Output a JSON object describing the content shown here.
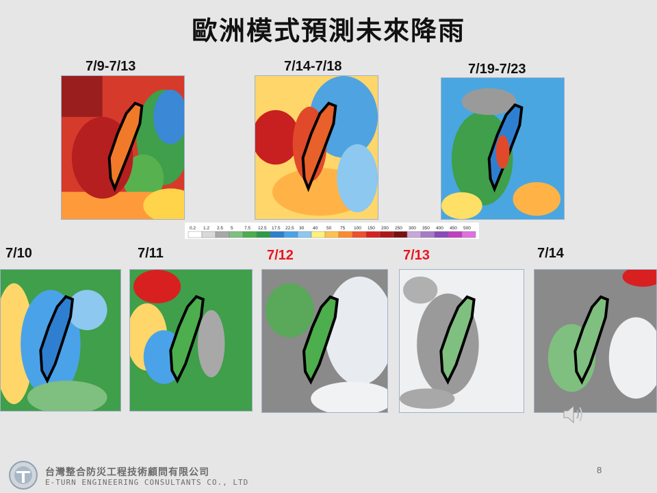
{
  "title": "歐洲模式預測未來降雨",
  "period_maps": [
    {
      "label": "7/9-7/13",
      "label_color": "#111111"
    },
    {
      "label": "7/14-7/18",
      "label_color": "#111111"
    },
    {
      "label": "7/19-7/23",
      "label_color": "#111111"
    }
  ],
  "daily_maps": [
    {
      "label": "7/10",
      "label_color": "#111111"
    },
    {
      "label": "7/11",
      "label_color": "#111111"
    },
    {
      "label": "7/12",
      "label_color": "#e8141e"
    },
    {
      "label": "7/13",
      "label_color": "#e8141e"
    },
    {
      "label": "7/14",
      "label_color": "#111111"
    }
  ],
  "colorbar": {
    "ticks": [
      "0.2",
      "1.2",
      "2.5",
      "5",
      "7.5",
      "12.5",
      "17.5",
      "22.5",
      "30",
      "40",
      "50",
      "75",
      "100",
      "150",
      "200",
      "250",
      "300",
      "350",
      "400",
      "450",
      "500"
    ],
    "colors": [
      "#ffffff",
      "#d9d9d9",
      "#a8a8a8",
      "#7fbf7f",
      "#4cae4c",
      "#2e9a47",
      "#2f7fd0",
      "#4aa3e8",
      "#8cc8f0",
      "#fff07a",
      "#ffc24a",
      "#ff8a2e",
      "#f0502a",
      "#d82020",
      "#b01818",
      "#7a1010",
      "#c7a8d8",
      "#a77ac8",
      "#8a4ab8",
      "#c040c0",
      "#e070e0"
    ]
  },
  "footer": {
    "page_number": "8",
    "company_zh": "台灣整合防災工程技術顧問有限公司",
    "company_en": "E-TURN ENGINEERING CONSULTANTS CO., LTD"
  },
  "icons": {
    "logo": "company-logo-icon",
    "speaker": "speaker-icon"
  }
}
